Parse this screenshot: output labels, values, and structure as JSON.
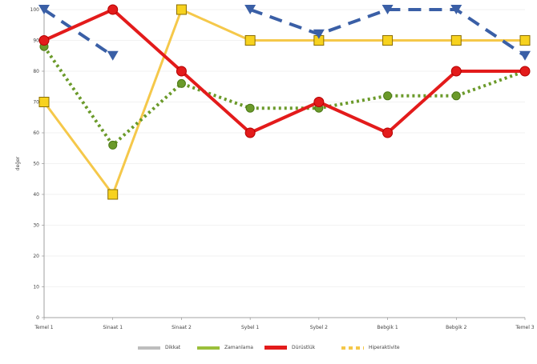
{
  "chart_data": {
    "type": "line",
    "categories": [
      "Temel 1",
      "Sinaat 1",
      "Sinaat 2",
      "Sybel 1",
      "Sybel 2",
      "Bebgik 1",
      "Bebgik 2",
      "Temel 3"
    ],
    "ylabel": "değer",
    "ylim": [
      0,
      100
    ],
    "yticks": [
      0,
      10,
      20,
      30,
      40,
      50,
      60,
      70,
      80,
      90,
      100
    ],
    "grid": true,
    "legend_position": "bottom",
    "series": [
      {
        "name": "Dikkat",
        "color": "#3a5fa6",
        "marker": "triangle",
        "dash": "16,10",
        "width": 4,
        "values": [
          100,
          85,
          null,
          100,
          92,
          100,
          100,
          85
        ]
      },
      {
        "name": "Zamanlama",
        "color": "#6b9a2a",
        "marker": "circle",
        "dash": "3,4",
        "width": 4,
        "values": [
          88,
          56,
          76,
          68,
          68,
          72,
          72,
          80
        ]
      },
      {
        "name": "Dürüstlük",
        "color": "#e31b1b",
        "marker": "circle",
        "dash": "",
        "width": 4,
        "values": [
          90,
          100,
          80,
          60,
          70,
          60,
          80,
          80
        ]
      },
      {
        "name": "Hiperaktivite",
        "color": "#f5c84a",
        "marker": "square",
        "dash": "",
        "width": 3,
        "values": [
          70,
          40,
          100,
          90,
          90,
          90,
          90,
          90
        ]
      }
    ],
    "legend": [
      {
        "name": "Dikkat",
        "color": "#bdbdbd"
      },
      {
        "name": "Zamanlama",
        "color": "#9bbf3b"
      },
      {
        "name": "Dürüstlük",
        "color": "#e31b1b"
      },
      {
        "name": "Hiperaktivite",
        "color": "#f5c84a"
      }
    ]
  }
}
